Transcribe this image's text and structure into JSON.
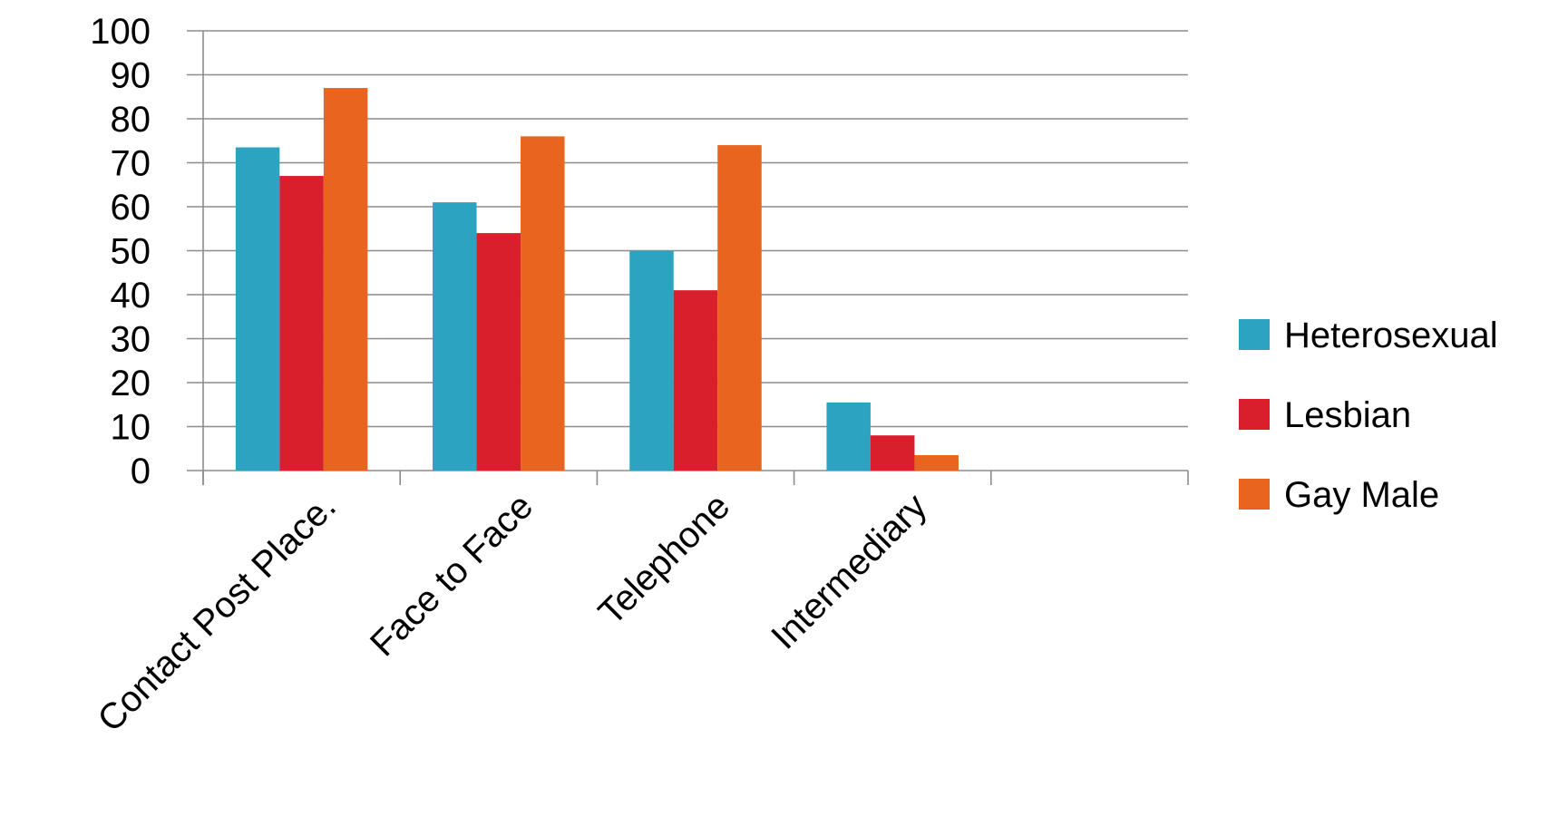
{
  "chart_data": {
    "type": "bar",
    "categories": [
      "Contact Post Place.",
      "Face to Face",
      "Telephone",
      "Intermediary",
      ""
    ],
    "series": [
      {
        "name": "Heterosexual",
        "color": "#2ba3c1",
        "values": [
          73.5,
          61,
          50,
          15.5,
          null
        ]
      },
      {
        "name": "Lesbian",
        "color": "#da1f2c",
        "values": [
          67,
          54,
          41,
          8,
          null
        ]
      },
      {
        "name": "Gay Male",
        "color": "#e9641e",
        "values": [
          87,
          76,
          74,
          3.5,
          null
        ]
      }
    ],
    "yticks": [
      "0",
      "10",
      "20",
      "30",
      "40",
      "50",
      "60",
      "70",
      "80",
      "90",
      "100"
    ],
    "ylim": [
      0,
      100
    ],
    "grid": true,
    "legend_position": "right",
    "title": "",
    "xlabel": "",
    "ylabel": ""
  }
}
